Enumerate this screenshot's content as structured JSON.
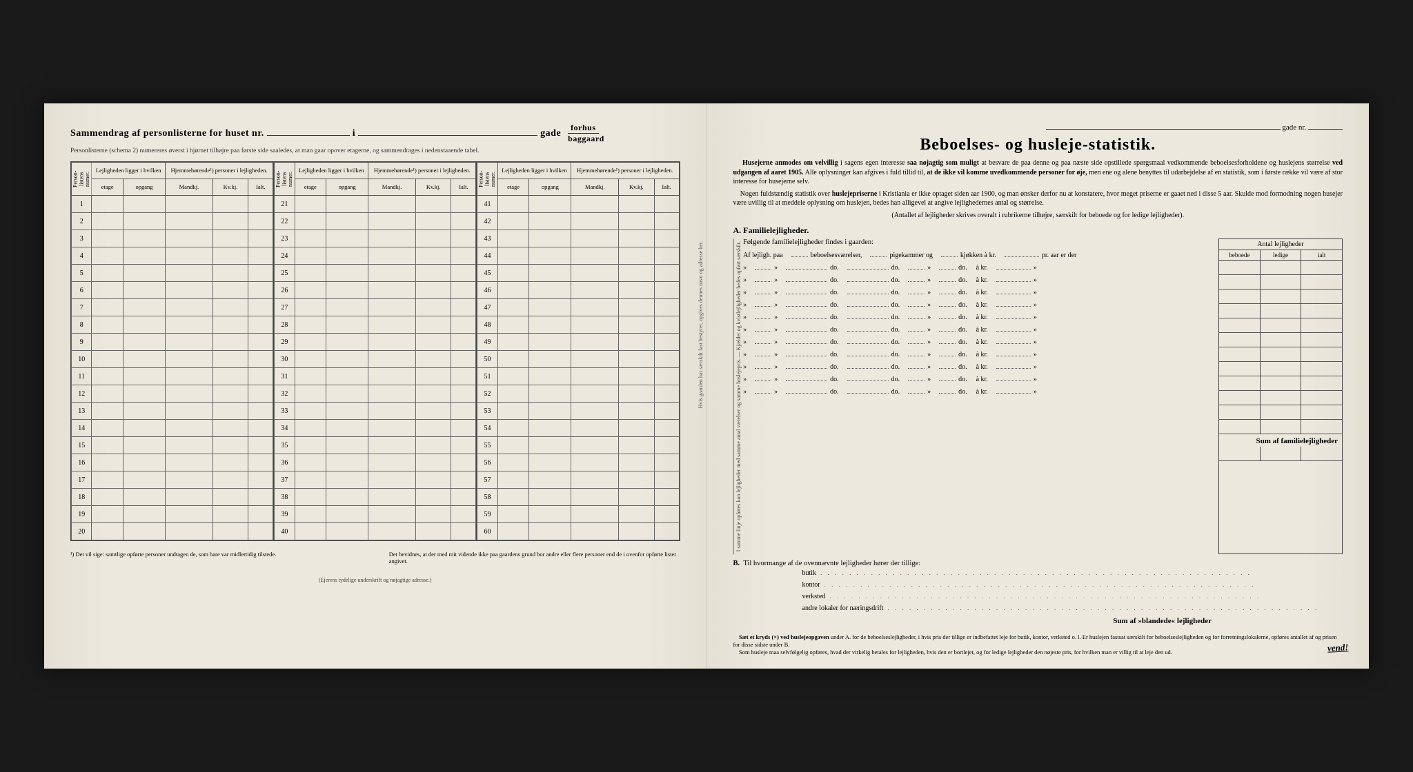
{
  "left": {
    "title_prefix": "Sammendrag af personlisterne for huset nr.",
    "title_i": "i",
    "title_gade": "gade",
    "forhus": "forhus",
    "baggaard": "baggaard",
    "subtitle": "Personlisterne (schema 2) numereres øverst i hjørnet tilhøjre paa første side saaledes, at man gaar opover etagerne, og sammendrages i nedenstaaende tabel.",
    "headers": {
      "person_nr": "Person-listens numer.",
      "lejlighed": "Lejligheden ligger i hvilken",
      "etage": "etage",
      "opgang": "opgang",
      "hjemme": "Hjemmehørende¹) personer i lejligheden.",
      "mandkj": "Mandkj.",
      "kvkj": "Kv.kj.",
      "ialt": "Ialt."
    },
    "rows1": [
      1,
      2,
      3,
      4,
      5,
      6,
      7,
      8,
      9,
      10,
      11,
      12,
      13,
      14,
      15,
      16,
      17,
      18,
      19,
      20
    ],
    "rows2": [
      21,
      22,
      23,
      24,
      25,
      26,
      27,
      28,
      29,
      30,
      31,
      32,
      33,
      34,
      35,
      36,
      37,
      38,
      39,
      40
    ],
    "rows3": [
      41,
      42,
      43,
      44,
      45,
      46,
      47,
      48,
      49,
      50,
      51,
      52,
      53,
      54,
      55,
      56,
      57,
      58,
      59,
      60
    ],
    "footnote1": "¹) Det vil sige: samtlige opførte personer undtagen de, som bare var midlertidig tilstede.",
    "footnote2": "Det bevidnes, at der med mit vidende ikke paa gaardens grund bor andre eller flere personer end de i ovenfor opførte lister angivet.",
    "ejerens": "(Ejerens tydelige underskrift og nøjagtige adresse.)"
  },
  "right": {
    "gade_nr": "gade nr.",
    "title": "Beboelses- og husleje-statistik.",
    "para1_a": "Husejerne anmodes om velvillig",
    "para1_b": " i sagens egen interesse ",
    "para1_c": "saa nøjagtig som muligt",
    "para1_d": " at besvare de paa denne og paa næste side opstillede spørgsmaal vedkommende beboelsesforholdene og huslejens størrelse ",
    "para1_e": "ved udgangen af aaret 1905.",
    "para1_f": " Alle oplysninger kan afgives i fuld tillid til, ",
    "para1_g": "at de ikke vil komme uvedkommende personer for øje,",
    "para1_h": " men ene og alene benyttes til udarbejdelse af en statistik, som i første række vil være af stor interesse for husejerne selv.",
    "para2_a": "Nogen fuldstændig statistik over ",
    "para2_b": "huslejepriserne",
    "para2_c": " i Kristiania er ikke optaget siden aar 1900, og man ønsker derfor nu at konstatere, hvor meget priserne er gaaet ned i disse 5 aar. Skulde mod formodning nogen husejer være uvillig til at meddele oplysning om huslejen, bedes han alligevel at angive lejlighedernes antal og størrelse.",
    "para3": "(Antallet af lejligheder skrives overalt i rubrikerne tilhøjre, særskilt for beboede og for ledige lejligheder).",
    "A_label": "A.  Familielejligheder.",
    "A_intro": "Følgende familielejligheder findes i gaarden:",
    "A_firstrow": {
      "af": "Af lejligh. paa",
      "beb": "beboelsesværelser,",
      "pige": "pigekammer og",
      "kjok": "kjøkken à kr.",
      "pr": "pr. aar er der"
    },
    "A_do": "do.",
    "A_akr": "à kr.",
    "A_quote": "»",
    "A_rows_count": 11,
    "A_vertical": "I samme linje opføres kun lejligheder med samme antal værelser og samme huslejepris. — Kjælder og kvistlejligheder bedes opført særskilt.",
    "antal_hdr": "Antal lejligheder",
    "antal_beboede": "beboede",
    "antal_ledige": "ledige",
    "antal_ialt": "ialt",
    "sumA": "Sum af familielejligheder",
    "B_label": "B.",
    "B_text": "Til hvormange af de ovennævnte lejligheder hører der tillige:",
    "B_rows": [
      "butik",
      "kontor",
      "verksted",
      "andre lokaler for næringsdrift"
    ],
    "sumB": "Sum af »blandede« lejligheder",
    "foot_a": "Sæt et kryds (×) ved huslejeopgaven",
    "foot_b": " under A. for de beboelseslejligheder, i hvis pris der tillige er indbefattet leje for butik, kontor, verksted o. l. Er huslejen fastsat særskilt for beboelseslejligheden og for forretningslokalerne, opføres antallet af og prisen for disse sidste under B.",
    "foot_c": "Som husleje maa selvfølgelig opføres, hvad der virkelig betales for lejligheden, hvis den er bortlejet, og for ledige lejligheder den nøjeste pris, for hvilken man er villig til at leje den ud.",
    "vend": "vend!",
    "gutter": "Hvis gaarden har særskilt fast bestyrer, opgives dennes navn og adresse her."
  }
}
